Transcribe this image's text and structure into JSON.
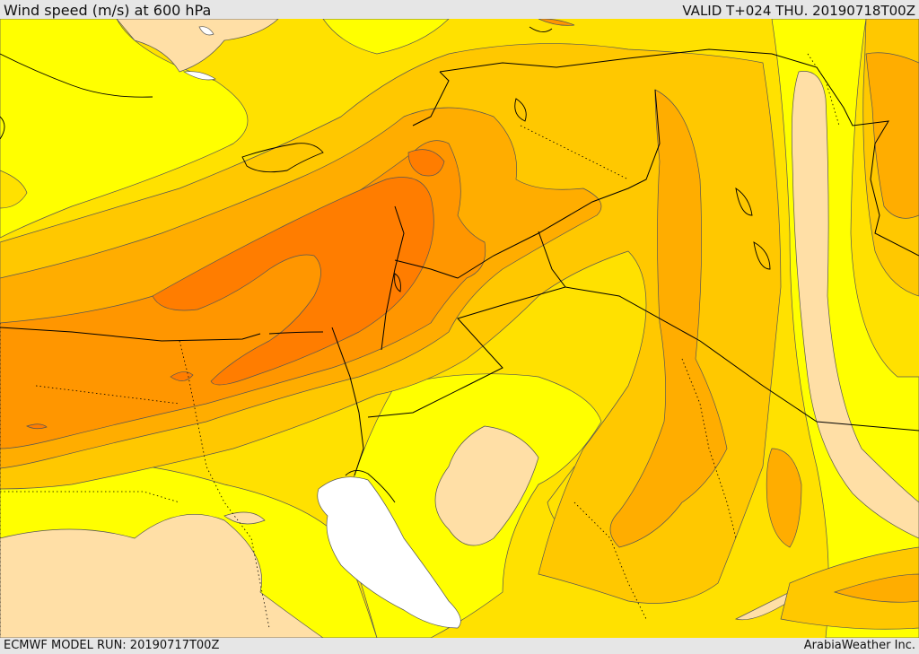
{
  "header": {
    "title": "Wind speed (m/s) at 600 hPa",
    "valid": "VALID T+024 THU. 20190718T00Z"
  },
  "footer": {
    "model_run": "ECMWF MODEL RUN: 20190717T00Z",
    "credit": "ArabiaWeather Inc."
  },
  "palette": {
    "band_0": "#ffffff",
    "band_1": "#ffdfa6",
    "band_2": "#ffff00",
    "band_3": "#ffe100",
    "band_4": "#ffc800",
    "band_5": "#ffad00",
    "band_6": "#ff9600",
    "band_7": "#ff7d00",
    "contour": "#555555",
    "border": "#000000"
  }
}
